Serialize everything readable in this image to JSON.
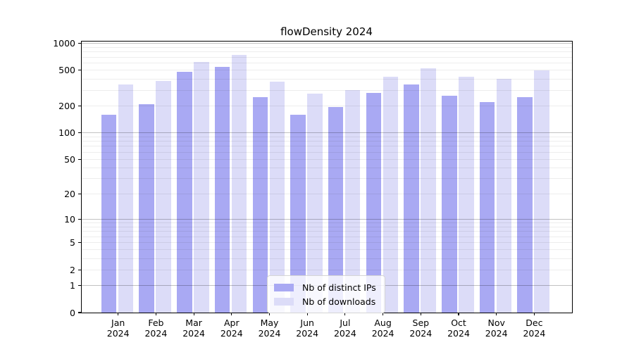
{
  "chart_data": {
    "type": "bar",
    "title": "flowDensity 2024",
    "categories": [
      "Jan",
      "Feb",
      "Mar",
      "Apr",
      "May",
      "Jun",
      "Jul",
      "Aug",
      "Sep",
      "Oct",
      "Nov",
      "Dec"
    ],
    "x_year_label": "2024",
    "series": [
      {
        "name": "Nb of distinct IPs",
        "color": "#a9a9f3",
        "values": [
          160,
          210,
          480,
          550,
          250,
          160,
          195,
          280,
          350,
          260,
          220,
          250
        ]
      },
      {
        "name": "Nb of downloads",
        "color": "#dcdcf8",
        "values": [
          350,
          380,
          620,
          740,
          370,
          275,
          300,
          425,
          525,
          420,
          400,
          500
        ]
      }
    ],
    "yscale": "symlog-log1p",
    "ylim": [
      0,
      1040
    ],
    "yticks": [
      {
        "label": "1000",
        "value": 1000
      },
      {
        "label": "500",
        "value": 500
      },
      {
        "label": "200",
        "value": 200
      },
      {
        "label": "100",
        "value": 100
      },
      {
        "label": "50",
        "value": 50
      },
      {
        "label": "20",
        "value": 20
      },
      {
        "label": "10",
        "value": 10
      },
      {
        "label": "5",
        "value": 5
      },
      {
        "label": "2",
        "value": 2
      },
      {
        "label": "1",
        "value": 1
      },
      {
        "label": "0",
        "value": 0
      }
    ],
    "grid": {
      "orientation": "horizontal",
      "drawn_over_bars": true,
      "major_values": [
        1,
        10,
        100,
        1000
      ],
      "minor_values": [
        2,
        3,
        4,
        5,
        6,
        7,
        8,
        9,
        20,
        30,
        40,
        50,
        60,
        70,
        80,
        90,
        200,
        300,
        400,
        500,
        600,
        700,
        800,
        900
      ]
    },
    "legend": {
      "position": "lower center",
      "items": [
        "Nb of distinct IPs",
        "Nb of downloads"
      ]
    }
  }
}
